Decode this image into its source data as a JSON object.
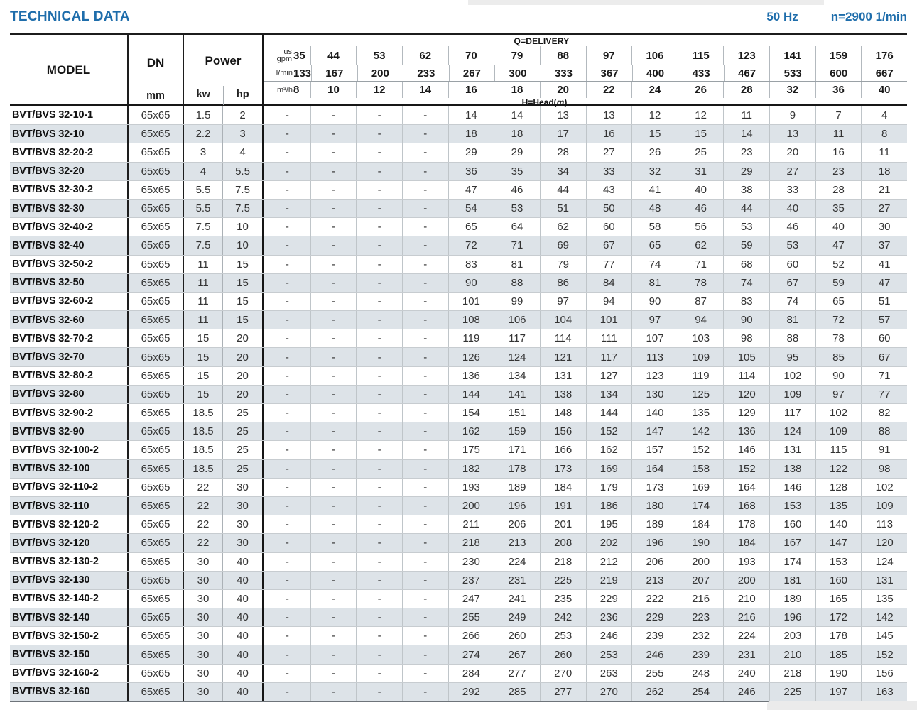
{
  "page": {
    "title": "TECHNICAL DATA",
    "frequency": "50 Hz",
    "speed": "n=2900 1/min"
  },
  "colors": {
    "accent_blue": "#1e6dab",
    "row_stripe": "#dde3e8",
    "border_dark": "#1c1c1c",
    "grid_line": "#b7bdc2"
  },
  "table": {
    "col_model": "MODEL",
    "col_dn": "DN",
    "col_dn_unit": "mm",
    "col_power": "Power",
    "col_kw": "kw",
    "col_hp": "hp",
    "delivery_label": "Q=DELIVERY",
    "head_prefix": "H=Head(",
    "head_unit": "m",
    "head_suffix": ")",
    "unit_gpm_line1": "us",
    "unit_gpm_line2": "gpm",
    "unit_lmin": "l/min",
    "unit_m3h": "m³/h",
    "delivery": {
      "us_gpm": [
        "35",
        "44",
        "53",
        "62",
        "70",
        "79",
        "88",
        "97",
        "106",
        "115",
        "123",
        "141",
        "159",
        "176"
      ],
      "l_min": [
        "133",
        "167",
        "200",
        "233",
        "267",
        "300",
        "333",
        "367",
        "400",
        "433",
        "467",
        "533",
        "600",
        "667"
      ],
      "m3_h": [
        "8",
        "10",
        "12",
        "14",
        "16",
        "18",
        "20",
        "22",
        "24",
        "26",
        "28",
        "32",
        "36",
        "40"
      ]
    },
    "rows": [
      {
        "model": "BVT/BVS 32-10-1",
        "dn": "65x65",
        "kw": "1.5",
        "hp": "2",
        "heads": [
          "-",
          "-",
          "-",
          "-",
          "14",
          "14",
          "13",
          "13",
          "12",
          "12",
          "11",
          "9",
          "7",
          "4"
        ]
      },
      {
        "model": "BVT/BVS 32-10",
        "dn": "65x65",
        "kw": "2.2",
        "hp": "3",
        "heads": [
          "-",
          "-",
          "-",
          "-",
          "18",
          "18",
          "17",
          "16",
          "15",
          "15",
          "14",
          "13",
          "11",
          "8"
        ]
      },
      {
        "model": "BVT/BVS 32-20-2",
        "dn": "65x65",
        "kw": "3",
        "hp": "4",
        "heads": [
          "-",
          "-",
          "-",
          "-",
          "29",
          "29",
          "28",
          "27",
          "26",
          "25",
          "23",
          "20",
          "16",
          "11"
        ]
      },
      {
        "model": "BVT/BVS 32-20",
        "dn": "65x65",
        "kw": "4",
        "hp": "5.5",
        "heads": [
          "-",
          "-",
          "-",
          "-",
          "36",
          "35",
          "34",
          "33",
          "32",
          "31",
          "29",
          "27",
          "23",
          "18"
        ]
      },
      {
        "model": "BVT/BVS 32-30-2",
        "dn": "65x65",
        "kw": "5.5",
        "hp": "7.5",
        "heads": [
          "-",
          "-",
          "-",
          "-",
          "47",
          "46",
          "44",
          "43",
          "41",
          "40",
          "38",
          "33",
          "28",
          "21"
        ]
      },
      {
        "model": "BVT/BVS 32-30",
        "dn": "65x65",
        "kw": "5.5",
        "hp": "7.5",
        "heads": [
          "-",
          "-",
          "-",
          "-",
          "54",
          "53",
          "51",
          "50",
          "48",
          "46",
          "44",
          "40",
          "35",
          "27"
        ]
      },
      {
        "model": "BVT/BVS 32-40-2",
        "dn": "65x65",
        "kw": "7.5",
        "hp": "10",
        "heads": [
          "-",
          "-",
          "-",
          "-",
          "65",
          "64",
          "62",
          "60",
          "58",
          "56",
          "53",
          "46",
          "40",
          "30"
        ]
      },
      {
        "model": "BVT/BVS 32-40",
        "dn": "65x65",
        "kw": "7.5",
        "hp": "10",
        "heads": [
          "-",
          "-",
          "-",
          "-",
          "72",
          "71",
          "69",
          "67",
          "65",
          "62",
          "59",
          "53",
          "47",
          "37"
        ]
      },
      {
        "model": "BVT/BVS 32-50-2",
        "dn": "65x65",
        "kw": "11",
        "hp": "15",
        "heads": [
          "-",
          "-",
          "-",
          "-",
          "83",
          "81",
          "79",
          "77",
          "74",
          "71",
          "68",
          "60",
          "52",
          "41"
        ]
      },
      {
        "model": "BVT/BVS 32-50",
        "dn": "65x65",
        "kw": "11",
        "hp": "15",
        "heads": [
          "-",
          "-",
          "-",
          "-",
          "90",
          "88",
          "86",
          "84",
          "81",
          "78",
          "74",
          "67",
          "59",
          "47"
        ]
      },
      {
        "model": "BVT/BVS 32-60-2",
        "dn": "65x65",
        "kw": "11",
        "hp": "15",
        "heads": [
          "-",
          "-",
          "-",
          "-",
          "101",
          "99",
          "97",
          "94",
          "90",
          "87",
          "83",
          "74",
          "65",
          "51"
        ]
      },
      {
        "model": "BVT/BVS 32-60",
        "dn": "65x65",
        "kw": "11",
        "hp": "15",
        "heads": [
          "-",
          "-",
          "-",
          "-",
          "108",
          "106",
          "104",
          "101",
          "97",
          "94",
          "90",
          "81",
          "72",
          "57"
        ]
      },
      {
        "model": "BVT/BVS 32-70-2",
        "dn": "65x65",
        "kw": "15",
        "hp": "20",
        "heads": [
          "-",
          "-",
          "-",
          "-",
          "119",
          "117",
          "114",
          "111",
          "107",
          "103",
          "98",
          "88",
          "78",
          "60"
        ]
      },
      {
        "model": "BVT/BVS 32-70",
        "dn": "65x65",
        "kw": "15",
        "hp": "20",
        "heads": [
          "-",
          "-",
          "-",
          "-",
          "126",
          "124",
          "121",
          "117",
          "113",
          "109",
          "105",
          "95",
          "85",
          "67"
        ]
      },
      {
        "model": "BVT/BVS 32-80-2",
        "dn": "65x65",
        "kw": "15",
        "hp": "20",
        "heads": [
          "-",
          "-",
          "-",
          "-",
          "136",
          "134",
          "131",
          "127",
          "123",
          "119",
          "114",
          "102",
          "90",
          "71"
        ]
      },
      {
        "model": "BVT/BVS 32-80",
        "dn": "65x65",
        "kw": "15",
        "hp": "20",
        "heads": [
          "-",
          "-",
          "-",
          "-",
          "144",
          "141",
          "138",
          "134",
          "130",
          "125",
          "120",
          "109",
          "97",
          "77"
        ]
      },
      {
        "model": "BVT/BVS 32-90-2",
        "dn": "65x65",
        "kw": "18.5",
        "hp": "25",
        "heads": [
          "-",
          "-",
          "-",
          "-",
          "154",
          "151",
          "148",
          "144",
          "140",
          "135",
          "129",
          "117",
          "102",
          "82"
        ]
      },
      {
        "model": "BVT/BVS 32-90",
        "dn": "65x65",
        "kw": "18.5",
        "hp": "25",
        "heads": [
          "-",
          "-",
          "-",
          "-",
          "162",
          "159",
          "156",
          "152",
          "147",
          "142",
          "136",
          "124",
          "109",
          "88"
        ]
      },
      {
        "model": "BVT/BVS 32-100-2",
        "dn": "65x65",
        "kw": "18.5",
        "hp": "25",
        "heads": [
          "-",
          "-",
          "-",
          "-",
          "175",
          "171",
          "166",
          "162",
          "157",
          "152",
          "146",
          "131",
          "115",
          "91"
        ]
      },
      {
        "model": "BVT/BVS 32-100",
        "dn": "65x65",
        "kw": "18.5",
        "hp": "25",
        "heads": [
          "-",
          "-",
          "-",
          "-",
          "182",
          "178",
          "173",
          "169",
          "164",
          "158",
          "152",
          "138",
          "122",
          "98"
        ]
      },
      {
        "model": "BVT/BVS 32-110-2",
        "dn": "65x65",
        "kw": "22",
        "hp": "30",
        "heads": [
          "-",
          "-",
          "-",
          "-",
          "193",
          "189",
          "184",
          "179",
          "173",
          "169",
          "164",
          "146",
          "128",
          "102"
        ]
      },
      {
        "model": "BVT/BVS 32-110",
        "dn": "65x65",
        "kw": "22",
        "hp": "30",
        "heads": [
          "-",
          "-",
          "-",
          "-",
          "200",
          "196",
          "191",
          "186",
          "180",
          "174",
          "168",
          "153",
          "135",
          "109"
        ]
      },
      {
        "model": "BVT/BVS 32-120-2",
        "dn": "65x65",
        "kw": "22",
        "hp": "30",
        "heads": [
          "-",
          "-",
          "-",
          "-",
          "211",
          "206",
          "201",
          "195",
          "189",
          "184",
          "178",
          "160",
          "140",
          "113"
        ]
      },
      {
        "model": "BVT/BVS 32-120",
        "dn": "65x65",
        "kw": "22",
        "hp": "30",
        "heads": [
          "-",
          "-",
          "-",
          "-",
          "218",
          "213",
          "208",
          "202",
          "196",
          "190",
          "184",
          "167",
          "147",
          "120"
        ]
      },
      {
        "model": "BVT/BVS 32-130-2",
        "dn": "65x65",
        "kw": "30",
        "hp": "40",
        "heads": [
          "-",
          "-",
          "-",
          "-",
          "230",
          "224",
          "218",
          "212",
          "206",
          "200",
          "193",
          "174",
          "153",
          "124"
        ]
      },
      {
        "model": "BVT/BVS 32-130",
        "dn": "65x65",
        "kw": "30",
        "hp": "40",
        "heads": [
          "-",
          "-",
          "-",
          "-",
          "237",
          "231",
          "225",
          "219",
          "213",
          "207",
          "200",
          "181",
          "160",
          "131"
        ]
      },
      {
        "model": "BVT/BVS 32-140-2",
        "dn": "65x65",
        "kw": "30",
        "hp": "40",
        "heads": [
          "-",
          "-",
          "-",
          "-",
          "247",
          "241",
          "235",
          "229",
          "222",
          "216",
          "210",
          "189",
          "165",
          "135"
        ]
      },
      {
        "model": "BVT/BVS 32-140",
        "dn": "65x65",
        "kw": "30",
        "hp": "40",
        "heads": [
          "-",
          "-",
          "-",
          "-",
          "255",
          "249",
          "242",
          "236",
          "229",
          "223",
          "216",
          "196",
          "172",
          "142"
        ]
      },
      {
        "model": "BVT/BVS 32-150-2",
        "dn": "65x65",
        "kw": "30",
        "hp": "40",
        "heads": [
          "-",
          "-",
          "-",
          "-",
          "266",
          "260",
          "253",
          "246",
          "239",
          "232",
          "224",
          "203",
          "178",
          "145"
        ]
      },
      {
        "model": "BVT/BVS 32-150",
        "dn": "65x65",
        "kw": "30",
        "hp": "40",
        "heads": [
          "-",
          "-",
          "-",
          "-",
          "274",
          "267",
          "260",
          "253",
          "246",
          "239",
          "231",
          "210",
          "185",
          "152"
        ]
      },
      {
        "model": "BVT/BVS 32-160-2",
        "dn": "65x65",
        "kw": "30",
        "hp": "40",
        "heads": [
          "-",
          "-",
          "-",
          "-",
          "284",
          "277",
          "270",
          "263",
          "255",
          "248",
          "240",
          "218",
          "190",
          "156"
        ]
      },
      {
        "model": "BVT/BVS 32-160",
        "dn": "65x65",
        "kw": "30",
        "hp": "40",
        "heads": [
          "-",
          "-",
          "-",
          "-",
          "292",
          "285",
          "277",
          "270",
          "262",
          "254",
          "246",
          "225",
          "197",
          "163"
        ]
      }
    ]
  }
}
